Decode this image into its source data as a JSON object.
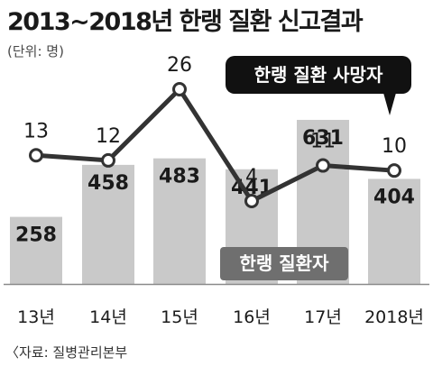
{
  "header": {
    "title": "2013~2018년 한랭 질환 신고결과",
    "unit": "(단위: 명)"
  },
  "footer": {
    "source": "〈자료: 질병관리본부"
  },
  "colors": {
    "bar": "#c9c9c9",
    "line": "#333333",
    "line_label_bg": "#111111",
    "bar_label_bg": "#6f6f6f",
    "axis": "#8a8a8a"
  },
  "chart_data": {
    "type": "bar",
    "categories": [
      "13년",
      "14년",
      "15년",
      "16년",
      "17년",
      "2018년"
    ],
    "series": [
      {
        "name": "한랭 질환자",
        "type": "bar",
        "values": [
          258,
          458,
          483,
          441,
          631,
          404
        ]
      },
      {
        "name": "한랭 질환 사망자",
        "type": "line",
        "values": [
          13,
          12,
          26,
          4,
          11,
          10
        ]
      }
    ],
    "ylim_bar": [
      0,
      700
    ],
    "ylim_line": [
      0,
      26
    ],
    "legend": [
      {
        "text": "한랭 질환 사망자",
        "style": "dark-callout"
      },
      {
        "text": "한랭 질환자",
        "style": "gray-box"
      }
    ]
  }
}
